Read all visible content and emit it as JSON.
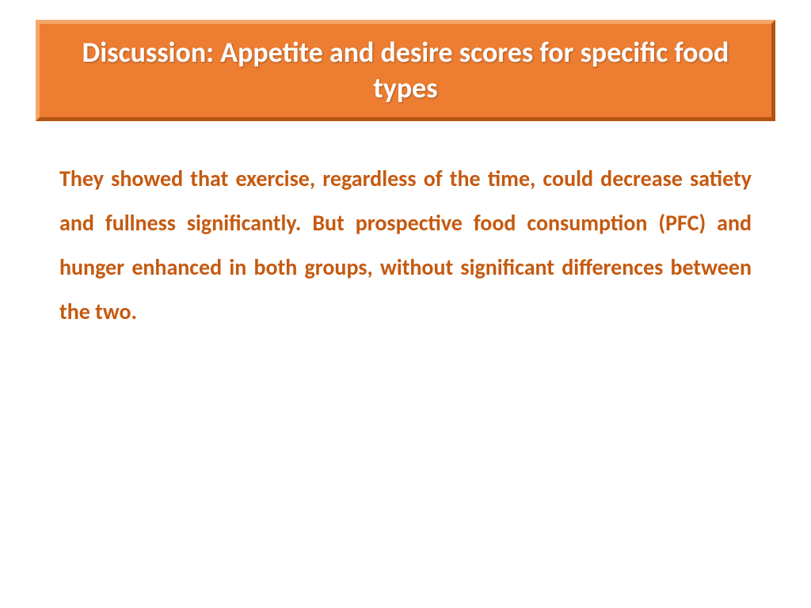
{
  "slide": {
    "title": "Discussion: Appetite and desire scores for specific food types",
    "body": "They showed that exercise, regardless of the time, could decrease satiety and fullness significantly. But prospective food consumption (PFC) and hunger enhanced in both groups, without significant differences between the two."
  },
  "styling": {
    "background_color": "#ffffff",
    "title_box": {
      "fill_color": "#ed7d31",
      "border_light": "#f4a86a",
      "border_dark": "#b35410",
      "border_width": 5,
      "text_color": "#ffffff",
      "font_size": 36,
      "font_weight": "bold"
    },
    "body": {
      "text_color": "#c55a11",
      "font_size": 28,
      "font_weight": "bold",
      "line_height": 2.0,
      "text_align": "justify"
    }
  }
}
